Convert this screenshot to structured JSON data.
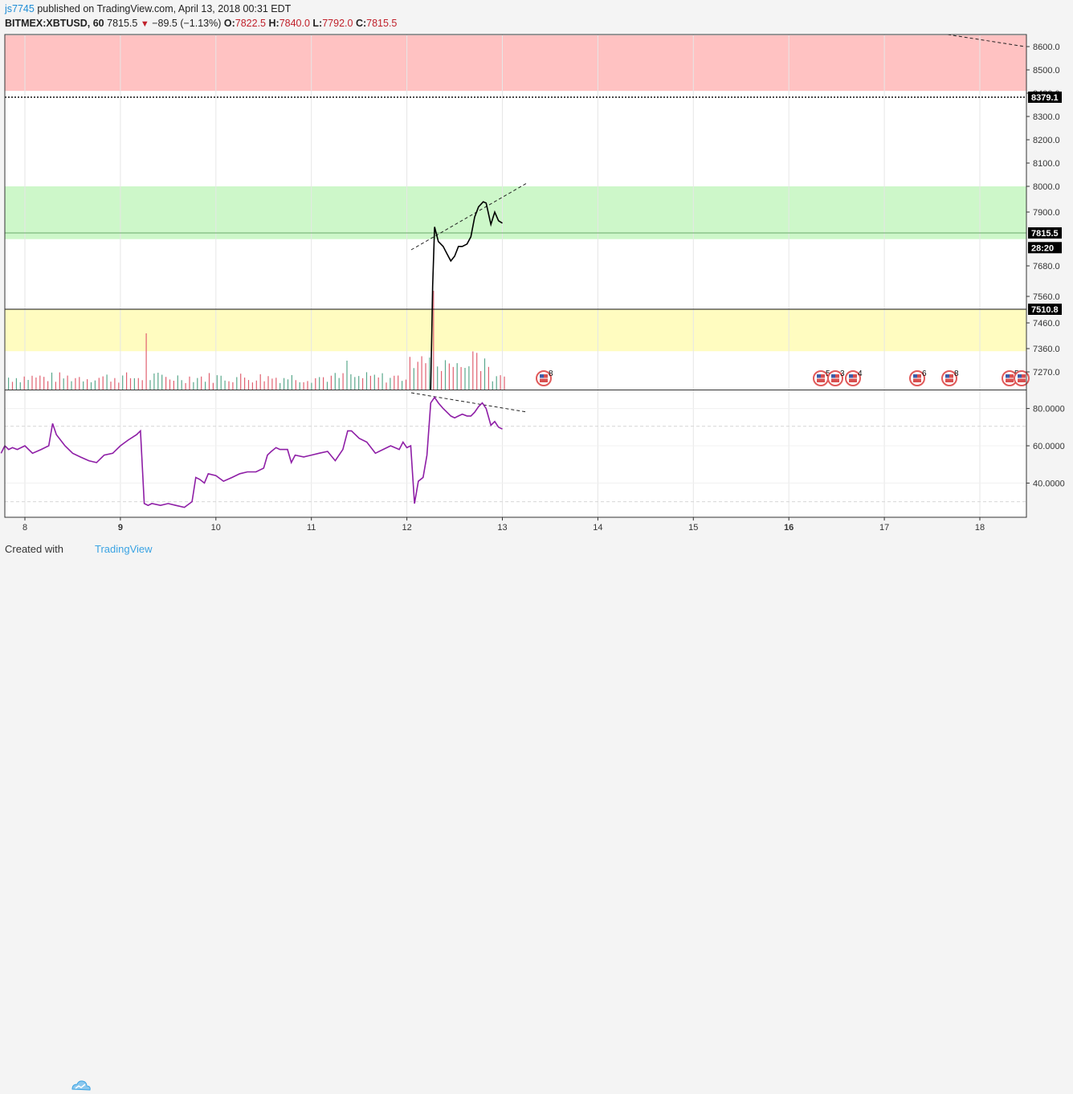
{
  "header": {
    "author": "js7745",
    "published": "published on TradingView.com, April 13, 2018 00:31 EDT",
    "symbol": "BITMEX:XBTUSD, 60",
    "last": "7815.5",
    "change": "−89.5 (−1.13%)",
    "o_label": "O:",
    "o_value": "7822.5",
    "h_label": "H:",
    "h_value": "7840.0",
    "l_label": "L:",
    "l_value": "7792.0",
    "c_label": "C:",
    "c_value": "7815.5"
  },
  "footer": {
    "created_with": "Created with",
    "brand": "TradingView"
  },
  "colors": {
    "price_line": "#000000",
    "rsi_line": "#8e1ea6",
    "red_zone": "#ffc2c2",
    "green_zone": "#cdf7c9",
    "yellow_zone": "#fffcc0",
    "volume_up": "#5aa88c",
    "volume_down": "#e06070"
  },
  "chart_data": {
    "type": "line",
    "price_axis": {
      "ticks": [
        "8600.0",
        "8500.0",
        "8400.0",
        "8300.0",
        "8200.0",
        "8100.0",
        "8000.0",
        "7900.0",
        "7680.0",
        "7560.0",
        "7460.0",
        "7360.0",
        "7270.0"
      ],
      "badges": [
        {
          "text": "8379.1",
          "price": 8379.1
        },
        {
          "text": "7815.5",
          "price": 7815.5
        },
        {
          "text": "28:20",
          "price": 7755
        },
        {
          "text": "7510.8",
          "price": 7510.8
        }
      ]
    },
    "rsi_axis": {
      "ticks": [
        "80.0000",
        "60.0000",
        "40.0000"
      ]
    },
    "x_axis": {
      "labels": [
        "8",
        "9",
        "10",
        "11",
        "12",
        "13",
        "14",
        "15",
        "16",
        "17",
        "18"
      ],
      "bold": [
        "9",
        "16"
      ]
    },
    "zones": [
      {
        "name": "resistance",
        "from": 8410,
        "to": 8640
      },
      {
        "name": "support-green",
        "from": 7790,
        "to": 8000
      },
      {
        "name": "support-yellow",
        "from": 7350,
        "to": 7510.8
      }
    ],
    "horizontal_lines": [
      {
        "price": 8379.1,
        "style": "dotted"
      },
      {
        "price": 7815.5,
        "style": "solid"
      },
      {
        "price": 7510.8,
        "style": "solid"
      }
    ],
    "price_series": [
      [
        12.25,
        6900
      ],
      [
        12.27,
        7600
      ],
      [
        12.29,
        7840
      ],
      [
        12.33,
        7780
      ],
      [
        12.38,
        7760
      ],
      [
        12.42,
        7730
      ],
      [
        12.46,
        7700
      ],
      [
        12.5,
        7720
      ],
      [
        12.54,
        7760
      ],
      [
        12.58,
        7760
      ],
      [
        12.63,
        7770
      ],
      [
        12.67,
        7800
      ],
      [
        12.71,
        7880
      ],
      [
        12.75,
        7920
      ],
      [
        12.8,
        7940
      ],
      [
        12.83,
        7935
      ],
      [
        12.88,
        7850
      ],
      [
        12.92,
        7900
      ],
      [
        12.96,
        7865
      ],
      [
        13.0,
        7855
      ]
    ],
    "rsi_series": [
      [
        7.75,
        56
      ],
      [
        7.79,
        60
      ],
      [
        7.83,
        58
      ],
      [
        7.87,
        59
      ],
      [
        7.92,
        58
      ],
      [
        8.0,
        60
      ],
      [
        8.08,
        56
      ],
      [
        8.17,
        58
      ],
      [
        8.25,
        60
      ],
      [
        8.29,
        72
      ],
      [
        8.33,
        66
      ],
      [
        8.42,
        60
      ],
      [
        8.5,
        56
      ],
      [
        8.58,
        54
      ],
      [
        8.67,
        52
      ],
      [
        8.75,
        51
      ],
      [
        8.83,
        55
      ],
      [
        8.92,
        56
      ],
      [
        9.0,
        60
      ],
      [
        9.08,
        63
      ],
      [
        9.17,
        66
      ],
      [
        9.21,
        68
      ],
      [
        9.25,
        29
      ],
      [
        9.29,
        28
      ],
      [
        9.33,
        29
      ],
      [
        9.42,
        28
      ],
      [
        9.5,
        29
      ],
      [
        9.58,
        28
      ],
      [
        9.67,
        27
      ],
      [
        9.75,
        30
      ],
      [
        9.79,
        43
      ],
      [
        9.83,
        42
      ],
      [
        9.88,
        40
      ],
      [
        9.92,
        45
      ],
      [
        10.0,
        44
      ],
      [
        10.08,
        41
      ],
      [
        10.17,
        43
      ],
      [
        10.25,
        45
      ],
      [
        10.33,
        46
      ],
      [
        10.42,
        46
      ],
      [
        10.5,
        48
      ],
      [
        10.54,
        55
      ],
      [
        10.58,
        57
      ],
      [
        10.63,
        59
      ],
      [
        10.67,
        58
      ],
      [
        10.75,
        58
      ],
      [
        10.79,
        51
      ],
      [
        10.83,
        55
      ],
      [
        10.92,
        54
      ],
      [
        11.0,
        55
      ],
      [
        11.08,
        56
      ],
      [
        11.17,
        57
      ],
      [
        11.25,
        52
      ],
      [
        11.33,
        58
      ],
      [
        11.38,
        68
      ],
      [
        11.42,
        68
      ],
      [
        11.5,
        64
      ],
      [
        11.58,
        62
      ],
      [
        11.67,
        56
      ],
      [
        11.75,
        58
      ],
      [
        11.83,
        60
      ],
      [
        11.92,
        58
      ],
      [
        11.96,
        62
      ],
      [
        12.0,
        59
      ],
      [
        12.04,
        60
      ],
      [
        12.08,
        29
      ],
      [
        12.12,
        41
      ],
      [
        12.17,
        43
      ],
      [
        12.21,
        55
      ],
      [
        12.25,
        83
      ],
      [
        12.29,
        86
      ],
      [
        12.33,
        83
      ],
      [
        12.38,
        80
      ],
      [
        12.42,
        78
      ],
      [
        12.46,
        76
      ],
      [
        12.5,
        75
      ],
      [
        12.54,
        76
      ],
      [
        12.58,
        77
      ],
      [
        12.63,
        76
      ],
      [
        12.67,
        76
      ],
      [
        12.71,
        78
      ],
      [
        12.75,
        81
      ],
      [
        12.79,
        83
      ],
      [
        12.83,
        80
      ],
      [
        12.88,
        71
      ],
      [
        12.92,
        73
      ],
      [
        12.96,
        70
      ],
      [
        13.0,
        69
      ]
    ]
  }
}
